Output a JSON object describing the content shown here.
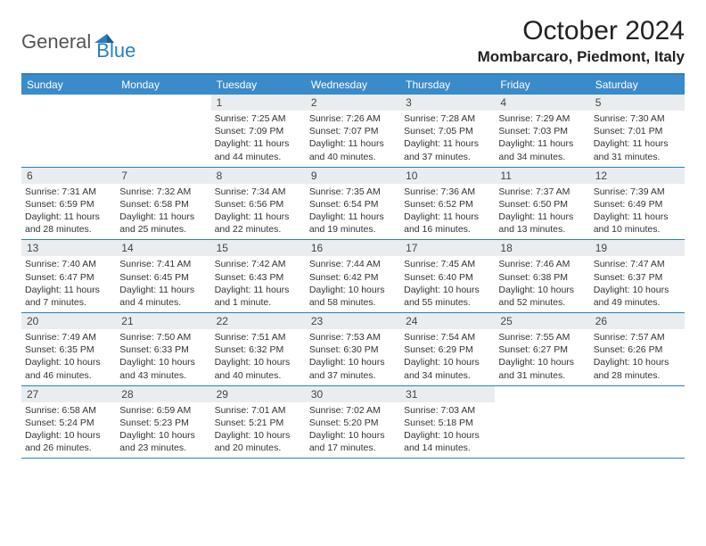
{
  "logo": {
    "text1": "General",
    "text2": "Blue",
    "mark_color": "#2a7fbf"
  },
  "title": "October 2024",
  "location": "Mombarcaro, Piedmont, Italy",
  "colors": {
    "header_bg": "#3a8bc9",
    "rule": "#2a7fbf",
    "daynum_bg": "#e9edef",
    "text": "#222222"
  },
  "day_headers": [
    "Sunday",
    "Monday",
    "Tuesday",
    "Wednesday",
    "Thursday",
    "Friday",
    "Saturday"
  ],
  "weeks": [
    [
      {
        "n": "",
        "sunrise": "",
        "sunset": "",
        "daylight": "",
        "empty": true
      },
      {
        "n": "",
        "sunrise": "",
        "sunset": "",
        "daylight": "",
        "empty": true
      },
      {
        "n": "1",
        "sunrise": "Sunrise: 7:25 AM",
        "sunset": "Sunset: 7:09 PM",
        "daylight": "Daylight: 11 hours and 44 minutes."
      },
      {
        "n": "2",
        "sunrise": "Sunrise: 7:26 AM",
        "sunset": "Sunset: 7:07 PM",
        "daylight": "Daylight: 11 hours and 40 minutes."
      },
      {
        "n": "3",
        "sunrise": "Sunrise: 7:28 AM",
        "sunset": "Sunset: 7:05 PM",
        "daylight": "Daylight: 11 hours and 37 minutes."
      },
      {
        "n": "4",
        "sunrise": "Sunrise: 7:29 AM",
        "sunset": "Sunset: 7:03 PM",
        "daylight": "Daylight: 11 hours and 34 minutes."
      },
      {
        "n": "5",
        "sunrise": "Sunrise: 7:30 AM",
        "sunset": "Sunset: 7:01 PM",
        "daylight": "Daylight: 11 hours and 31 minutes."
      }
    ],
    [
      {
        "n": "6",
        "sunrise": "Sunrise: 7:31 AM",
        "sunset": "Sunset: 6:59 PM",
        "daylight": "Daylight: 11 hours and 28 minutes."
      },
      {
        "n": "7",
        "sunrise": "Sunrise: 7:32 AM",
        "sunset": "Sunset: 6:58 PM",
        "daylight": "Daylight: 11 hours and 25 minutes."
      },
      {
        "n": "8",
        "sunrise": "Sunrise: 7:34 AM",
        "sunset": "Sunset: 6:56 PM",
        "daylight": "Daylight: 11 hours and 22 minutes."
      },
      {
        "n": "9",
        "sunrise": "Sunrise: 7:35 AM",
        "sunset": "Sunset: 6:54 PM",
        "daylight": "Daylight: 11 hours and 19 minutes."
      },
      {
        "n": "10",
        "sunrise": "Sunrise: 7:36 AM",
        "sunset": "Sunset: 6:52 PM",
        "daylight": "Daylight: 11 hours and 16 minutes."
      },
      {
        "n": "11",
        "sunrise": "Sunrise: 7:37 AM",
        "sunset": "Sunset: 6:50 PM",
        "daylight": "Daylight: 11 hours and 13 minutes."
      },
      {
        "n": "12",
        "sunrise": "Sunrise: 7:39 AM",
        "sunset": "Sunset: 6:49 PM",
        "daylight": "Daylight: 11 hours and 10 minutes."
      }
    ],
    [
      {
        "n": "13",
        "sunrise": "Sunrise: 7:40 AM",
        "sunset": "Sunset: 6:47 PM",
        "daylight": "Daylight: 11 hours and 7 minutes."
      },
      {
        "n": "14",
        "sunrise": "Sunrise: 7:41 AM",
        "sunset": "Sunset: 6:45 PM",
        "daylight": "Daylight: 11 hours and 4 minutes."
      },
      {
        "n": "15",
        "sunrise": "Sunrise: 7:42 AM",
        "sunset": "Sunset: 6:43 PM",
        "daylight": "Daylight: 11 hours and 1 minute."
      },
      {
        "n": "16",
        "sunrise": "Sunrise: 7:44 AM",
        "sunset": "Sunset: 6:42 PM",
        "daylight": "Daylight: 10 hours and 58 minutes."
      },
      {
        "n": "17",
        "sunrise": "Sunrise: 7:45 AM",
        "sunset": "Sunset: 6:40 PM",
        "daylight": "Daylight: 10 hours and 55 minutes."
      },
      {
        "n": "18",
        "sunrise": "Sunrise: 7:46 AM",
        "sunset": "Sunset: 6:38 PM",
        "daylight": "Daylight: 10 hours and 52 minutes."
      },
      {
        "n": "19",
        "sunrise": "Sunrise: 7:47 AM",
        "sunset": "Sunset: 6:37 PM",
        "daylight": "Daylight: 10 hours and 49 minutes."
      }
    ],
    [
      {
        "n": "20",
        "sunrise": "Sunrise: 7:49 AM",
        "sunset": "Sunset: 6:35 PM",
        "daylight": "Daylight: 10 hours and 46 minutes."
      },
      {
        "n": "21",
        "sunrise": "Sunrise: 7:50 AM",
        "sunset": "Sunset: 6:33 PM",
        "daylight": "Daylight: 10 hours and 43 minutes."
      },
      {
        "n": "22",
        "sunrise": "Sunrise: 7:51 AM",
        "sunset": "Sunset: 6:32 PM",
        "daylight": "Daylight: 10 hours and 40 minutes."
      },
      {
        "n": "23",
        "sunrise": "Sunrise: 7:53 AM",
        "sunset": "Sunset: 6:30 PM",
        "daylight": "Daylight: 10 hours and 37 minutes."
      },
      {
        "n": "24",
        "sunrise": "Sunrise: 7:54 AM",
        "sunset": "Sunset: 6:29 PM",
        "daylight": "Daylight: 10 hours and 34 minutes."
      },
      {
        "n": "25",
        "sunrise": "Sunrise: 7:55 AM",
        "sunset": "Sunset: 6:27 PM",
        "daylight": "Daylight: 10 hours and 31 minutes."
      },
      {
        "n": "26",
        "sunrise": "Sunrise: 7:57 AM",
        "sunset": "Sunset: 6:26 PM",
        "daylight": "Daylight: 10 hours and 28 minutes."
      }
    ],
    [
      {
        "n": "27",
        "sunrise": "Sunrise: 6:58 AM",
        "sunset": "Sunset: 5:24 PM",
        "daylight": "Daylight: 10 hours and 26 minutes."
      },
      {
        "n": "28",
        "sunrise": "Sunrise: 6:59 AM",
        "sunset": "Sunset: 5:23 PM",
        "daylight": "Daylight: 10 hours and 23 minutes."
      },
      {
        "n": "29",
        "sunrise": "Sunrise: 7:01 AM",
        "sunset": "Sunset: 5:21 PM",
        "daylight": "Daylight: 10 hours and 20 minutes."
      },
      {
        "n": "30",
        "sunrise": "Sunrise: 7:02 AM",
        "sunset": "Sunset: 5:20 PM",
        "daylight": "Daylight: 10 hours and 17 minutes."
      },
      {
        "n": "31",
        "sunrise": "Sunrise: 7:03 AM",
        "sunset": "Sunset: 5:18 PM",
        "daylight": "Daylight: 10 hours and 14 minutes."
      },
      {
        "n": "",
        "sunrise": "",
        "sunset": "",
        "daylight": "",
        "empty": true
      },
      {
        "n": "",
        "sunrise": "",
        "sunset": "",
        "daylight": "",
        "empty": true
      }
    ]
  ]
}
